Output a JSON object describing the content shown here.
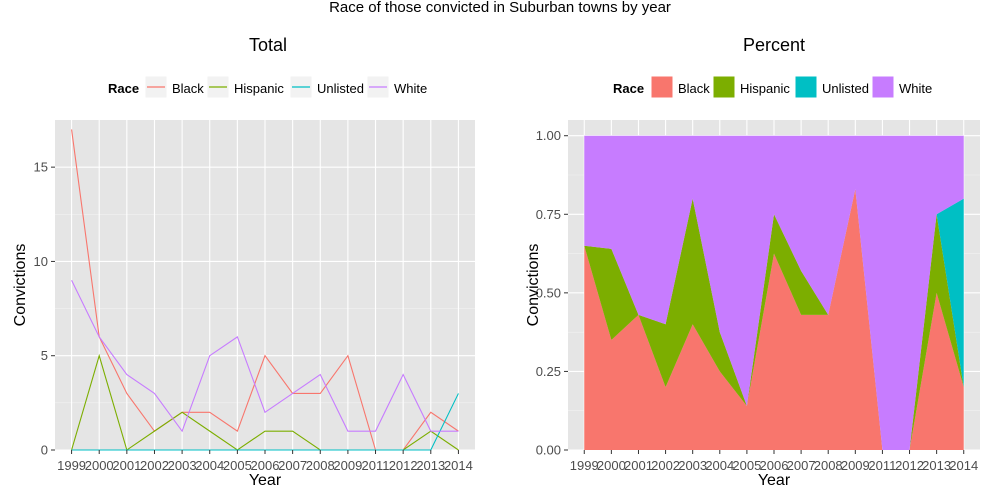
{
  "title": "Race of those convicted in Suburban towns by year",
  "chart_data": [
    {
      "type": "line",
      "title": "Total",
      "xlabel": "Year",
      "ylabel": "Convictions",
      "legend_title": "Race",
      "legend_position": "top",
      "grid": true,
      "x": [
        "1999",
        "2000",
        "2001",
        "2002",
        "2003",
        "2004",
        "2005",
        "2006",
        "2007",
        "2008",
        "2009",
        "2011",
        "2012",
        "2013",
        "2014"
      ],
      "ylim": [
        0,
        17.5
      ],
      "y_ticks": [
        0,
        5,
        10,
        15
      ],
      "y_tick_labels": [
        "0",
        "5",
        "10",
        "15"
      ],
      "series": [
        {
          "name": "Black",
          "color": "#F8766D",
          "values": [
            17,
            6,
            3,
            1,
            2,
            2,
            1,
            5,
            3,
            3,
            5,
            0,
            0,
            2,
            1
          ]
        },
        {
          "name": "Hispanic",
          "color": "#7CAE00",
          "values": [
            0,
            5,
            0,
            1,
            2,
            1,
            0,
            1,
            1,
            0,
            0,
            0,
            0,
            1,
            0
          ]
        },
        {
          "name": "Unlisted",
          "color": "#00BFC4",
          "values": [
            0,
            0,
            0,
            0,
            0,
            0,
            0,
            0,
            0,
            0,
            0,
            0,
            0,
            0,
            3
          ]
        },
        {
          "name": "White",
          "color": "#C77CFF",
          "values": [
            9,
            6,
            4,
            3,
            1,
            5,
            6,
            2,
            3,
            4,
            1,
            1,
            4,
            1,
            1
          ]
        }
      ]
    },
    {
      "type": "area",
      "stacked": true,
      "title": "Percent",
      "xlabel": "Year",
      "ylabel": "Convictions",
      "legend_title": "Race",
      "legend_position": "top",
      "grid": true,
      "x": [
        "1999",
        "2000",
        "2001",
        "2002",
        "2003",
        "2004",
        "2005",
        "2006",
        "2007",
        "2008",
        "2009",
        "2011",
        "2012",
        "2013",
        "2014"
      ],
      "ylim": [
        0,
        1.05
      ],
      "y_ticks": [
        0,
        0.25,
        0.5,
        0.75,
        1.0
      ],
      "y_tick_labels": [
        "0.00",
        "0.25",
        "0.50",
        "0.75",
        "1.00"
      ],
      "series": [
        {
          "name": "Black",
          "color": "#F8766D",
          "values": [
            0.65,
            0.35,
            0.43,
            0.2,
            0.4,
            0.25,
            0.14,
            0.625,
            0.43,
            0.43,
            0.83,
            0,
            0,
            0.5,
            0.2
          ]
        },
        {
          "name": "Hispanic",
          "color": "#7CAE00",
          "values": [
            0.0,
            0.29,
            0.0,
            0.2,
            0.4,
            0.125,
            0.0,
            0.125,
            0.14,
            0.0,
            0.0,
            0.0,
            0.0,
            0.25,
            0.0
          ]
        },
        {
          "name": "Unlisted",
          "color": "#00BFC4",
          "values": [
            0,
            0,
            0,
            0,
            0,
            0,
            0,
            0,
            0,
            0,
            0,
            0,
            0,
            0,
            0.6
          ]
        },
        {
          "name": "White",
          "color": "#C77CFF",
          "values": [
            0.35,
            0.36,
            0.57,
            0.6,
            0.2,
            0.625,
            0.86,
            0.25,
            0.43,
            0.57,
            0.17,
            1.0,
            1.0,
            0.25,
            0.2
          ]
        }
      ]
    }
  ]
}
